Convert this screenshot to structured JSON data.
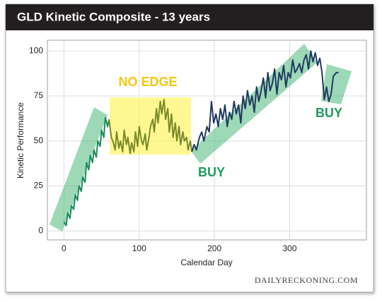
{
  "chart_data": {
    "type": "line",
    "title": "GLD Kinetic Composite - 13 years",
    "x_label": "Calendar Day",
    "y_label": "Kinetic Performance",
    "annotations": [
      "NO EDGE",
      "BUY",
      "BUY"
    ],
    "source": "DAILYRECKONING.COM",
    "xlim": [
      -22,
      402
    ],
    "ylim": [
      -5,
      106
    ],
    "xticks": [
      0,
      100,
      200,
      300
    ],
    "yticks": [
      0,
      25,
      50,
      75,
      100
    ],
    "grid": true,
    "series": [
      {
        "color": "#1e8a5a",
        "x": [
          0,
          3,
          5,
          8,
          10,
          13,
          15,
          18,
          20,
          23,
          25,
          28,
          30,
          33,
          35,
          38,
          40,
          43,
          45,
          48,
          50,
          53,
          55,
          58,
          60
        ],
        "values": [
          5,
          3,
          10,
          7,
          14,
          12,
          20,
          17,
          25,
          22,
          30,
          27,
          38,
          34,
          42,
          38,
          45,
          41,
          50,
          47,
          56,
          52,
          63,
          58,
          62
        ]
      },
      {
        "color": "#7a8a2a",
        "x": [
          60,
          63,
          65,
          68,
          70,
          73,
          75,
          78,
          80,
          83,
          85,
          88,
          90,
          93,
          95,
          98,
          100,
          103,
          105,
          108,
          110,
          113,
          115,
          118,
          120,
          123,
          125,
          128,
          130,
          133,
          135,
          138,
          140,
          143,
          145,
          148,
          150,
          153,
          155,
          158,
          160,
          163,
          165,
          168,
          170
        ],
        "values": [
          62,
          52,
          50,
          45,
          55,
          46,
          50,
          44,
          56,
          48,
          52,
          43,
          49,
          44,
          55,
          47,
          58,
          50,
          48,
          54,
          45,
          52,
          58,
          62,
          55,
          68,
          60,
          72,
          65,
          73,
          62,
          68,
          55,
          65,
          52,
          60,
          50,
          58,
          48,
          55,
          50,
          52,
          45,
          50,
          44
        ]
      },
      {
        "color": "#1f3a5f",
        "x": [
          170,
          173,
          176,
          180,
          183,
          186,
          190,
          193,
          196,
          199,
          202,
          205,
          208,
          211,
          214,
          217,
          220,
          223,
          226,
          229,
          232,
          235,
          238,
          241,
          244,
          247,
          250,
          253,
          256,
          259,
          262,
          265,
          268,
          271,
          274,
          277,
          280,
          283,
          286,
          289,
          292,
          295,
          298,
          301,
          304,
          307,
          310,
          313,
          316,
          319,
          322,
          325,
          328,
          331,
          334,
          337,
          340,
          343,
          346,
          349,
          352,
          355,
          358,
          362,
          365
        ],
        "values": [
          44,
          48,
          45,
          52,
          55,
          50,
          58,
          55,
          72,
          60,
          65,
          58,
          68,
          62,
          70,
          58,
          66,
          62,
          72,
          65,
          70,
          60,
          75,
          68,
          78,
          70,
          75,
          66,
          80,
          72,
          78,
          85,
          74,
          88,
          78,
          82,
          90,
          76,
          88,
          84,
          92,
          80,
          88,
          85,
          95,
          88,
          90,
          93,
          88,
          95,
          98,
          90,
          100,
          94,
          99,
          92,
          96,
          88,
          73,
          80,
          72,
          76,
          86,
          88,
          88
        ]
      }
    ]
  }
}
